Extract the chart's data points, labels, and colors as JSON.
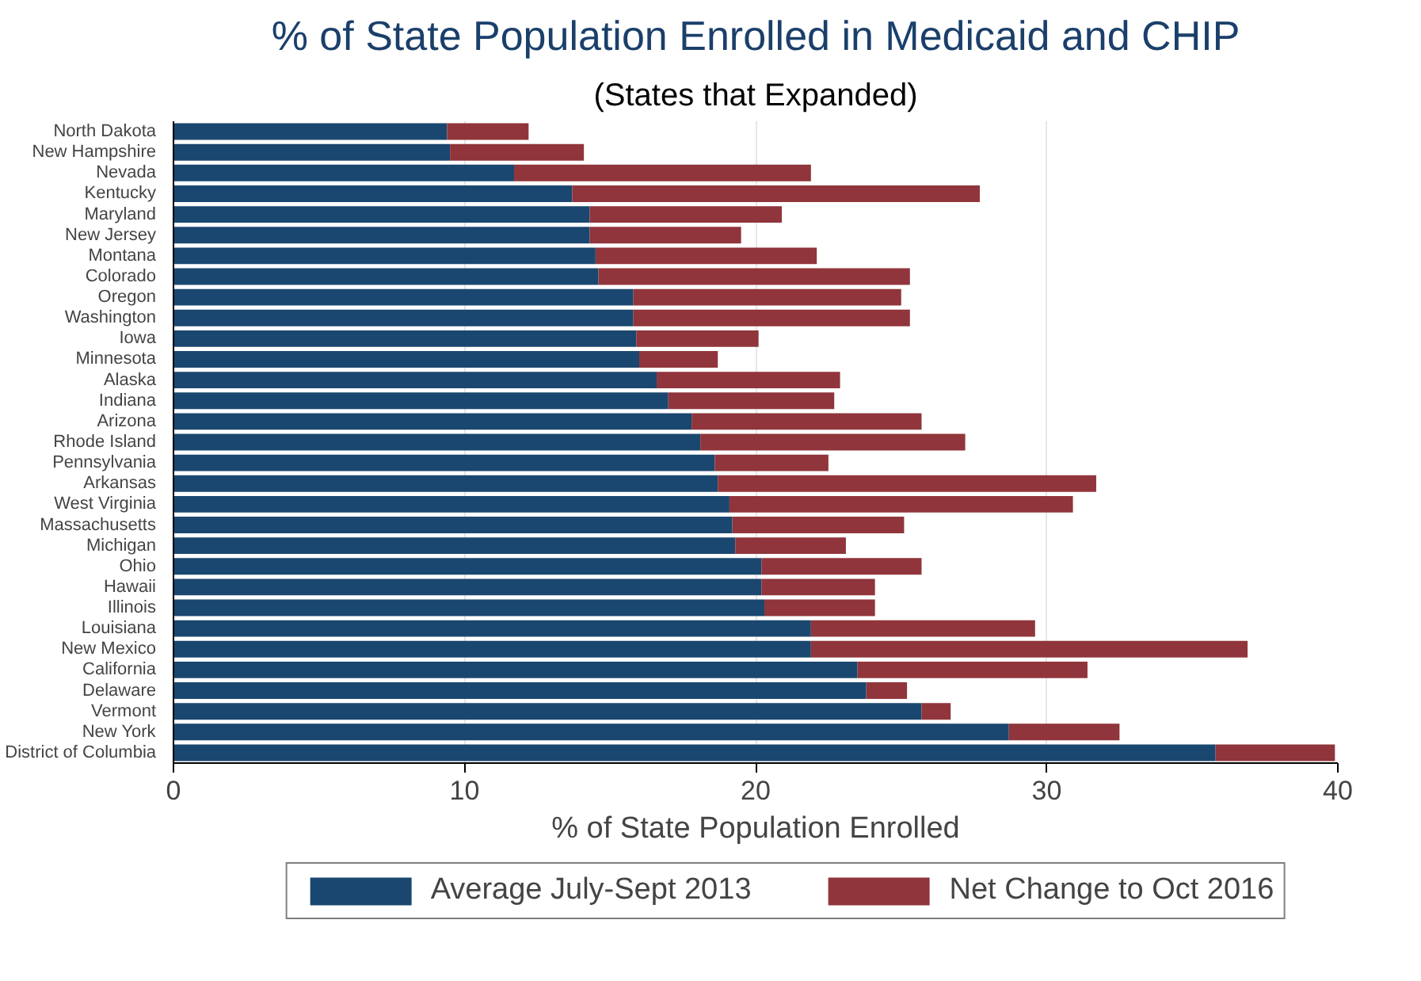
{
  "chart_data": {
    "type": "bar",
    "orientation": "horizontal",
    "stacked": true,
    "title": "% of State Population Enrolled in Medicaid and CHIP",
    "subtitle": "(States that Expanded)",
    "xlabel": "% of State Population Enrolled",
    "categories": [
      "North Dakota",
      "New Hampshire",
      "Nevada",
      "Kentucky",
      "Maryland",
      "New Jersey",
      "Montana",
      "Colorado",
      "Oregon",
      "Washington",
      "Iowa",
      "Minnesota",
      "Alaska",
      "Indiana",
      "Arizona",
      "Rhode Island",
      "Pennsylvania",
      "Arkansas",
      "West Virginia",
      "Massachusetts",
      "Michigan",
      "Ohio",
      "Hawaii",
      "Illinois",
      "Louisiana",
      "New Mexico",
      "California",
      "Delaware",
      "Vermont",
      "New York",
      "District of Columbia"
    ],
    "series": [
      {
        "name": "Average July-Sept 2013",
        "color": "#1a476f",
        "values": [
          9.4,
          9.5,
          11.7,
          13.7,
          14.3,
          14.3,
          14.5,
          14.6,
          15.8,
          15.8,
          15.9,
          16.0,
          16.6,
          17.0,
          17.8,
          18.1,
          18.6,
          18.7,
          19.1,
          19.2,
          19.3,
          20.2,
          20.2,
          20.3,
          21.9,
          21.9,
          23.5,
          23.8,
          25.7,
          28.7,
          35.8
        ]
      },
      {
        "name": "Net Change to Oct 2016",
        "color": "#90353b",
        "values": [
          2.8,
          4.6,
          10.2,
          14.0,
          6.6,
          5.2,
          7.6,
          10.7,
          9.2,
          9.5,
          4.2,
          2.7,
          6.3,
          5.7,
          7.9,
          9.1,
          3.9,
          13.0,
          11.8,
          5.9,
          3.8,
          5.5,
          3.9,
          3.8,
          7.7,
          15.0,
          7.9,
          1.4,
          1.0,
          3.8,
          4.1
        ]
      }
    ],
    "xlim": [
      0,
      40
    ],
    "xticks": [
      0,
      10,
      20,
      30,
      40
    ],
    "grid": "x",
    "legend": "bottom"
  }
}
